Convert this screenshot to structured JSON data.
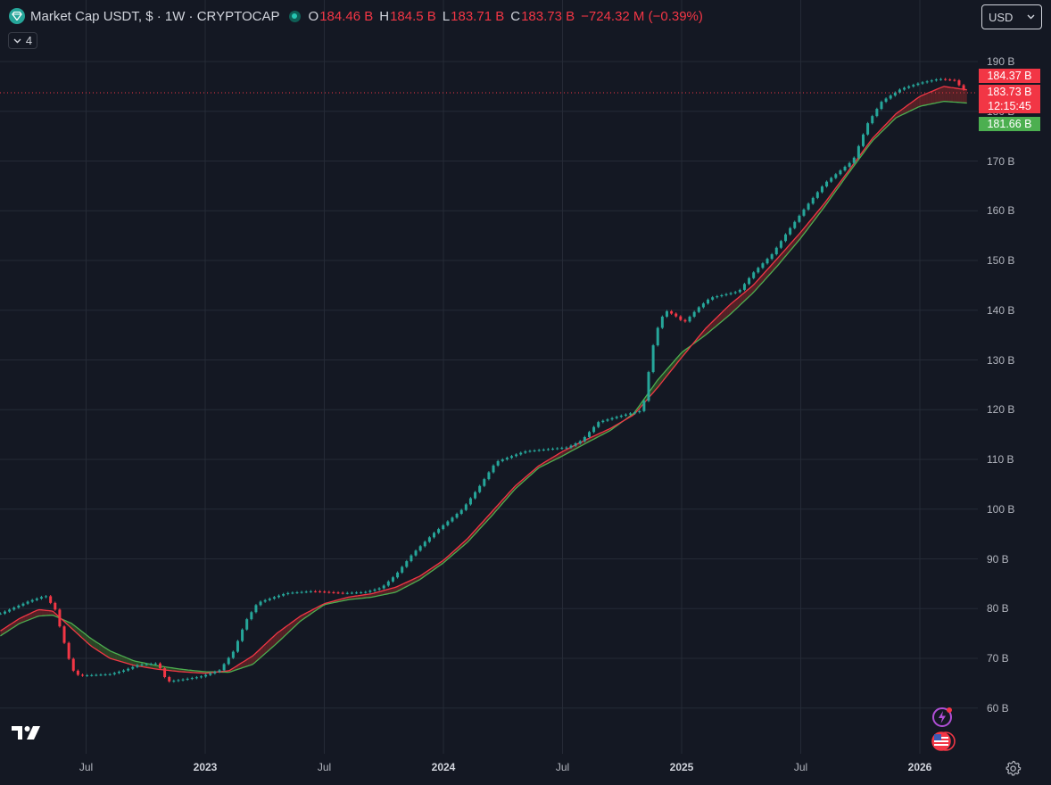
{
  "header": {
    "title": "Market Cap USDT, $ · 1W · CRYPTOCAP",
    "ohlc": [
      {
        "label": "O",
        "value": "184.46 B"
      },
      {
        "label": "H",
        "value": "184.5 B"
      },
      {
        "label": "L",
        "value": "183.71 B"
      },
      {
        "label": "C",
        "value": "183.73 B"
      }
    ],
    "change": "−724.32 M (−0.39%)",
    "indicator_count": "4",
    "currency": "USD"
  },
  "price_tags": {
    "upper": "184.37 B",
    "last": "183.73 B",
    "countdown": "12:15:45",
    "lower": "181.66 B"
  },
  "colors": {
    "background": "#141823",
    "up": "#26a69a",
    "down": "#f23645",
    "ma_fast": "#f23645",
    "ma_slow": "#4caf50",
    "tag_green": "#4caf50"
  },
  "icons": {
    "symbol": "diamond-icon",
    "dropdown": "chevron-down-icon",
    "logo": "tradingview-logo-icon",
    "alert": "lightning-icon",
    "flag": "us-flag-icon",
    "settings": "gear-icon"
  },
  "chart_data": {
    "type": "candlestick",
    "y_axis_labels": [
      "190 B",
      "180 B",
      "170 B",
      "160 B",
      "150 B",
      "140 B",
      "130 B",
      "120 B",
      "110 B",
      "100 B",
      "90 B",
      "80 B",
      "70 B",
      "60 B"
    ],
    "y_ticks": [
      190,
      180,
      170,
      160,
      150,
      140,
      130,
      120,
      110,
      100,
      90,
      80,
      70,
      60
    ],
    "x_axis_labels": [
      {
        "text": "Jul",
        "x": 2022.5,
        "year": false
      },
      {
        "text": "2023",
        "x": 2023.0,
        "year": true
      },
      {
        "text": "Jul",
        "x": 2023.5,
        "year": false
      },
      {
        "text": "2024",
        "x": 2024.0,
        "year": true
      },
      {
        "text": "Jul",
        "x": 2024.5,
        "year": false
      },
      {
        "text": "2025",
        "x": 2025.0,
        "year": true
      },
      {
        "text": "Jul",
        "x": 2025.5,
        "year": false
      },
      {
        "text": "2026",
        "x": 2026.0,
        "year": true
      }
    ],
    "xlim": [
      2022.14,
      2026.6
    ],
    "ylim": [
      51.2,
      195.1
    ],
    "last_price": 183.73,
    "close_anchors": [
      [
        2022.14,
        79.0
      ],
      [
        2022.26,
        81.5
      ],
      [
        2022.33,
        82.6
      ],
      [
        2022.37,
        79.8
      ],
      [
        2022.4,
        74.5
      ],
      [
        2022.44,
        67.8
      ],
      [
        2022.47,
        66.5
      ],
      [
        2022.6,
        66.8
      ],
      [
        2022.66,
        67.6
      ],
      [
        2022.72,
        68.7
      ],
      [
        2022.8,
        69.0
      ],
      [
        2022.84,
        65.3
      ],
      [
        2022.9,
        65.7
      ],
      [
        2022.98,
        66.3
      ],
      [
        2023.06,
        67.6
      ],
      [
        2023.12,
        71.5
      ],
      [
        2023.17,
        77.5
      ],
      [
        2023.22,
        81.2
      ],
      [
        2023.34,
        83.1
      ],
      [
        2023.45,
        83.5
      ],
      [
        2023.58,
        83.1
      ],
      [
        2023.67,
        83.3
      ],
      [
        2023.74,
        84.2
      ],
      [
        2023.8,
        86.8
      ],
      [
        2023.87,
        91.0
      ],
      [
        2023.96,
        95.2
      ],
      [
        2024.08,
        100.0
      ],
      [
        2024.15,
        104.5
      ],
      [
        2024.22,
        109.5
      ],
      [
        2024.34,
        111.6
      ],
      [
        2024.47,
        112.2
      ],
      [
        2024.52,
        112.4
      ],
      [
        2024.58,
        113.8
      ],
      [
        2024.65,
        117.5
      ],
      [
        2024.73,
        118.6
      ],
      [
        2024.83,
        119.8
      ],
      [
        2024.85,
        123.0
      ],
      [
        2024.87,
        131.0
      ],
      [
        2024.9,
        136.5
      ],
      [
        2024.93,
        140.0
      ],
      [
        2024.97,
        139.0
      ],
      [
        2025.01,
        137.5
      ],
      [
        2025.07,
        140.5
      ],
      [
        2025.12,
        142.5
      ],
      [
        2025.24,
        143.8
      ],
      [
        2025.3,
        147.5
      ],
      [
        2025.38,
        151.3
      ],
      [
        2025.44,
        155.5
      ],
      [
        2025.52,
        160.7
      ],
      [
        2025.6,
        165.5
      ],
      [
        2025.72,
        170.2
      ],
      [
        2025.78,
        177.5
      ],
      [
        2025.84,
        182.0
      ],
      [
        2025.92,
        184.5
      ],
      [
        2026.0,
        185.7
      ],
      [
        2026.08,
        186.5
      ],
      [
        2026.15,
        186.2
      ],
      [
        2026.17,
        184.9
      ],
      [
        2026.2,
        183.73
      ]
    ],
    "series": [
      {
        "name": "",
        "color": "#f23645",
        "points": [
          [
            2022.14,
            75.5
          ],
          [
            2022.22,
            78.0
          ],
          [
            2022.3,
            79.8
          ],
          [
            2022.36,
            79.5
          ],
          [
            2022.44,
            76.0
          ],
          [
            2022.52,
            72.5
          ],
          [
            2022.6,
            70.0
          ],
          [
            2022.7,
            68.6
          ],
          [
            2022.8,
            67.8
          ],
          [
            2022.9,
            67.3
          ],
          [
            2023.0,
            67.0
          ],
          [
            2023.1,
            67.5
          ],
          [
            2023.2,
            70.5
          ],
          [
            2023.3,
            75.0
          ],
          [
            2023.4,
            78.5
          ],
          [
            2023.5,
            81.0
          ],
          [
            2023.6,
            82.3
          ],
          [
            2023.7,
            83.0
          ],
          [
            2023.8,
            84.3
          ],
          [
            2023.9,
            86.5
          ],
          [
            2024.0,
            89.7
          ],
          [
            2024.1,
            94.0
          ],
          [
            2024.2,
            99.3
          ],
          [
            2024.3,
            104.6
          ],
          [
            2024.4,
            108.7
          ],
          [
            2024.5,
            111.6
          ],
          [
            2024.6,
            114.0
          ],
          [
            2024.7,
            116.2
          ],
          [
            2024.8,
            119.0
          ],
          [
            2024.9,
            124.5
          ],
          [
            2025.0,
            130.5
          ],
          [
            2025.1,
            136.3
          ],
          [
            2025.2,
            141.0
          ],
          [
            2025.3,
            145.0
          ],
          [
            2025.4,
            150.3
          ],
          [
            2025.5,
            155.7
          ],
          [
            2025.6,
            161.5
          ],
          [
            2025.7,
            168.0
          ],
          [
            2025.8,
            174.5
          ],
          [
            2025.9,
            179.5
          ],
          [
            2026.0,
            183.0
          ],
          [
            2026.1,
            185.0
          ],
          [
            2026.2,
            184.3
          ]
        ]
      },
      {
        "name": "",
        "color": "#4caf50",
        "points": [
          [
            2022.14,
            74.5
          ],
          [
            2022.22,
            77.0
          ],
          [
            2022.3,
            78.5
          ],
          [
            2022.36,
            78.7
          ],
          [
            2022.44,
            77.0
          ],
          [
            2022.52,
            74.0
          ],
          [
            2022.6,
            71.5
          ],
          [
            2022.7,
            69.5
          ],
          [
            2022.8,
            68.5
          ],
          [
            2022.9,
            67.8
          ],
          [
            2023.0,
            67.3
          ],
          [
            2023.1,
            67.2
          ],
          [
            2023.2,
            68.8
          ],
          [
            2023.3,
            73.0
          ],
          [
            2023.4,
            77.5
          ],
          [
            2023.5,
            80.8
          ],
          [
            2023.6,
            81.8
          ],
          [
            2023.7,
            82.3
          ],
          [
            2023.8,
            83.3
          ],
          [
            2023.9,
            85.8
          ],
          [
            2024.0,
            89.2
          ],
          [
            2024.1,
            93.3
          ],
          [
            2024.2,
            98.5
          ],
          [
            2024.3,
            104.0
          ],
          [
            2024.4,
            108.3
          ],
          [
            2024.5,
            110.7
          ],
          [
            2024.6,
            113.3
          ],
          [
            2024.7,
            115.8
          ],
          [
            2024.8,
            119.3
          ],
          [
            2024.9,
            126.0
          ],
          [
            2025.0,
            131.5
          ],
          [
            2025.1,
            135.0
          ],
          [
            2025.2,
            139.0
          ],
          [
            2025.3,
            143.5
          ],
          [
            2025.4,
            148.8
          ],
          [
            2025.5,
            154.5
          ],
          [
            2025.6,
            160.8
          ],
          [
            2025.7,
            167.5
          ],
          [
            2025.8,
            174.0
          ],
          [
            2025.9,
            178.7
          ],
          [
            2026.0,
            181.0
          ],
          [
            2026.1,
            182.0
          ],
          [
            2026.2,
            181.66
          ]
        ]
      }
    ],
    "grid": true,
    "legend": "top-left"
  }
}
